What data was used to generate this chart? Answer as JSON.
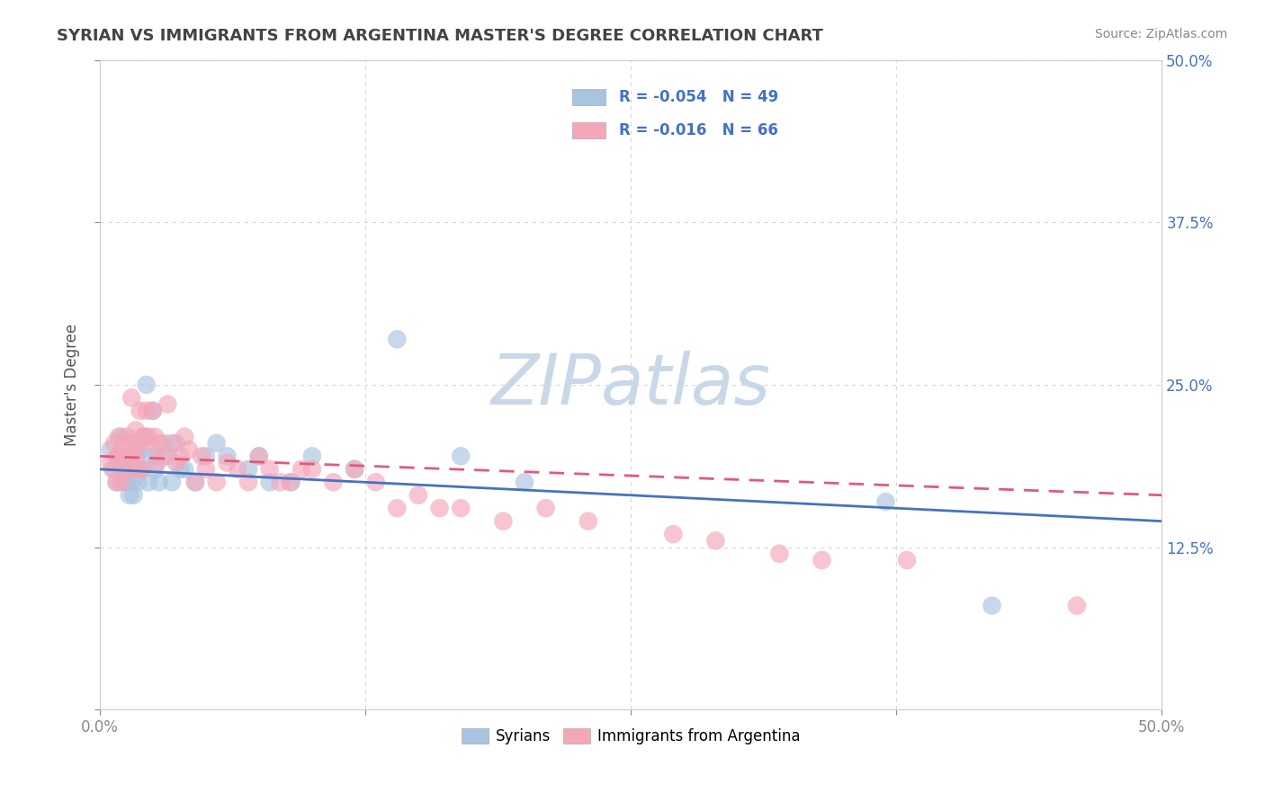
{
  "title": "SYRIAN VS IMMIGRANTS FROM ARGENTINA MASTER'S DEGREE CORRELATION CHART",
  "source": "Source: ZipAtlas.com",
  "ylabel": "Master's Degree",
  "xlim": [
    0.0,
    0.5
  ],
  "ylim": [
    0.0,
    0.5
  ],
  "syrians_R": -0.054,
  "syrians_N": 49,
  "argentina_R": -0.016,
  "argentina_N": 66,
  "syrians_color": "#a8c4e0",
  "argentina_color": "#f4a7b9",
  "syrians_line_color": "#4472c4",
  "argentina_line_color": "#e05a7a",
  "watermark": "ZIPatlas",
  "watermark_color": "#c8d8e8",
  "background_color": "#ffffff",
  "grid_color": "#d8d8d8",
  "title_color": "#444444",
  "syr_x": [
    0.005,
    0.007,
    0.008,
    0.009,
    0.01,
    0.01,
    0.011,
    0.012,
    0.013,
    0.013,
    0.014,
    0.015,
    0.015,
    0.016,
    0.016,
    0.017,
    0.018,
    0.018,
    0.019,
    0.02,
    0.021,
    0.022,
    0.023,
    0.024,
    0.025,
    0.026,
    0.027,
    0.028,
    0.03,
    0.032,
    0.034,
    0.036,
    0.038,
    0.04,
    0.045,
    0.05,
    0.055,
    0.06,
    0.07,
    0.075,
    0.08,
    0.09,
    0.1,
    0.12,
    0.14,
    0.17,
    0.2,
    0.37,
    0.42
  ],
  "syr_y": [
    0.2,
    0.185,
    0.175,
    0.195,
    0.21,
    0.185,
    0.175,
    0.195,
    0.185,
    0.175,
    0.165,
    0.185,
    0.175,
    0.185,
    0.165,
    0.2,
    0.185,
    0.175,
    0.2,
    0.185,
    0.21,
    0.25,
    0.175,
    0.195,
    0.23,
    0.185,
    0.195,
    0.175,
    0.205,
    0.195,
    0.175,
    0.205,
    0.185,
    0.185,
    0.175,
    0.195,
    0.205,
    0.195,
    0.185,
    0.195,
    0.175,
    0.175,
    0.195,
    0.185,
    0.285,
    0.195,
    0.175,
    0.16,
    0.08
  ],
  "arg_x": [
    0.005,
    0.006,
    0.007,
    0.008,
    0.008,
    0.009,
    0.01,
    0.01,
    0.011,
    0.012,
    0.013,
    0.014,
    0.015,
    0.015,
    0.016,
    0.017,
    0.017,
    0.018,
    0.018,
    0.019,
    0.02,
    0.02,
    0.021,
    0.022,
    0.023,
    0.024,
    0.025,
    0.026,
    0.027,
    0.028,
    0.03,
    0.032,
    0.034,
    0.036,
    0.038,
    0.04,
    0.042,
    0.045,
    0.048,
    0.05,
    0.055,
    0.06,
    0.065,
    0.07,
    0.075,
    0.08,
    0.085,
    0.09,
    0.095,
    0.1,
    0.11,
    0.12,
    0.13,
    0.14,
    0.15,
    0.16,
    0.17,
    0.19,
    0.21,
    0.23,
    0.27,
    0.29,
    0.32,
    0.34,
    0.38,
    0.46
  ],
  "arg_y": [
    0.19,
    0.185,
    0.205,
    0.195,
    0.175,
    0.21,
    0.195,
    0.175,
    0.2,
    0.185,
    0.21,
    0.205,
    0.195,
    0.24,
    0.185,
    0.215,
    0.195,
    0.205,
    0.185,
    0.23,
    0.21,
    0.185,
    0.21,
    0.23,
    0.21,
    0.205,
    0.23,
    0.21,
    0.19,
    0.205,
    0.195,
    0.235,
    0.205,
    0.19,
    0.195,
    0.21,
    0.2,
    0.175,
    0.195,
    0.185,
    0.175,
    0.19,
    0.185,
    0.175,
    0.195,
    0.185,
    0.175,
    0.175,
    0.185,
    0.185,
    0.175,
    0.185,
    0.175,
    0.155,
    0.165,
    0.155,
    0.155,
    0.145,
    0.155,
    0.145,
    0.135,
    0.13,
    0.12,
    0.115,
    0.115,
    0.08
  ],
  "syr_line_x0": 0.0,
  "syr_line_y0": 0.185,
  "syr_line_x1": 0.5,
  "syr_line_y1": 0.145,
  "arg_line_x0": 0.0,
  "arg_line_y0": 0.195,
  "arg_line_x1": 0.5,
  "arg_line_y1": 0.165
}
